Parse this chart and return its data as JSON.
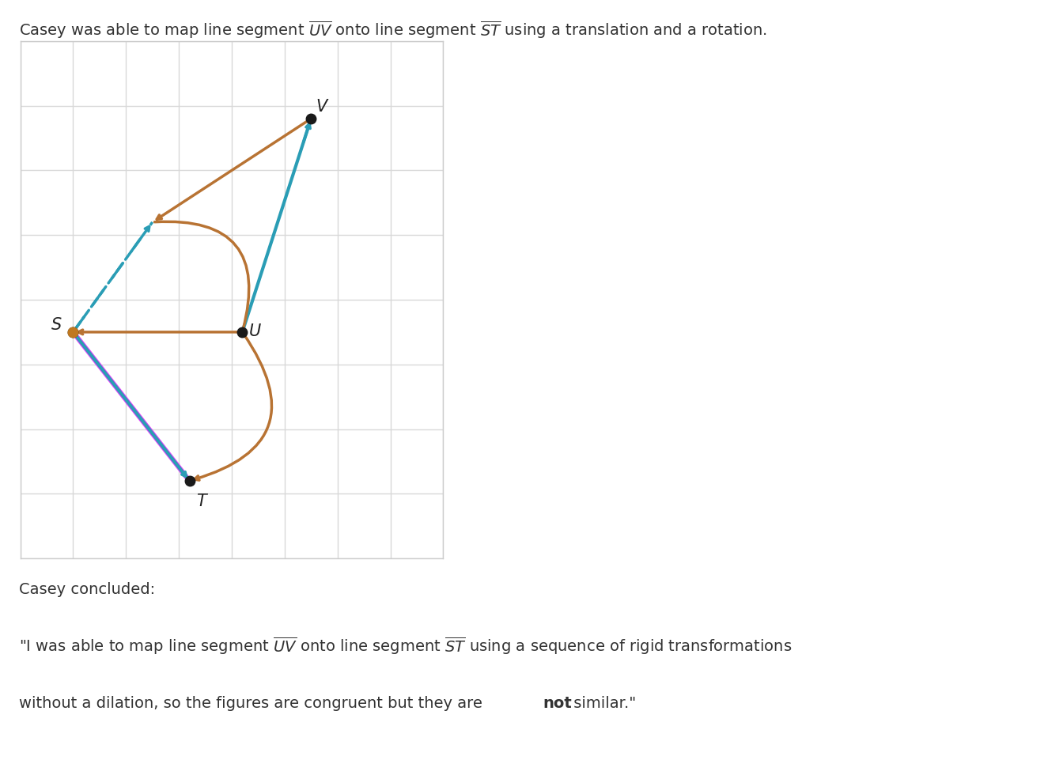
{
  "grid_xlim": [
    0,
    8
  ],
  "grid_ylim": [
    0,
    8
  ],
  "grid_color": "#d8d8d8",
  "bg_color": "#ffffff",
  "point_S": [
    1.0,
    3.5
  ],
  "point_T": [
    3.2,
    1.2
  ],
  "point_U": [
    4.2,
    3.5
  ],
  "point_V": [
    5.5,
    6.8
  ],
  "point_mid": [
    2.5,
    5.2
  ],
  "color_ST": "#2a9db5",
  "color_UV": "#2a9db5",
  "color_arc": "#b87333",
  "color_dashed": "#2a9db5",
  "color_pink": "#e040fb",
  "dot_color": "#1a1a1a",
  "title": "Casey was able to map line segment $\\overline{UV}$ onto line segment $\\overline{ST}$ using a translation and a rotation.",
  "conclusion_label": "Casey concluded:",
  "quote_line1": "\"I was able to map line segment $\\overline{UV}$ onto line segment $\\overline{ST}$ using a sequence of rigid transformations",
  "quote_line2_pre": "without a dilation, so the figures are congruent but they are ",
  "quote_line2_bold": "not",
  "quote_line2_post": " similar.\""
}
